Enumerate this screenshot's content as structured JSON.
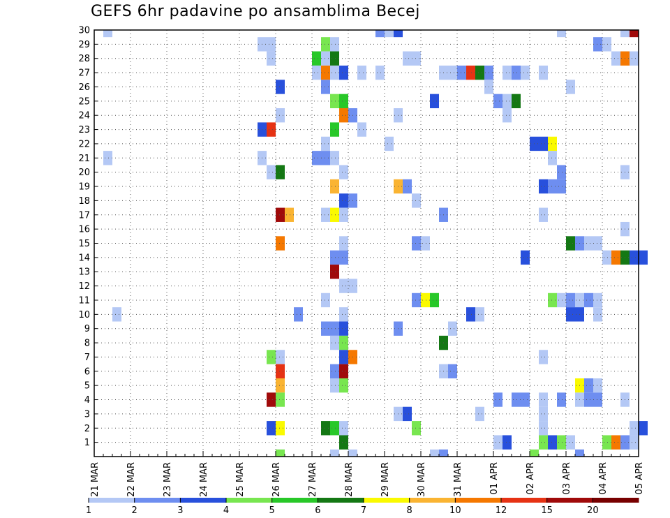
{
  "chart_data": {
    "type": "heatmap",
    "title": "GEFS 6hr padavine po ansamblima Becej",
    "xlabel": "",
    "ylabel": "",
    "x_ticks": [
      "21 MAR",
      "22 MAR",
      "23 MAR",
      "24 MAR",
      "25 MAR",
      "26 MAR",
      "27 MAR",
      "28 MAR",
      "29 MAR",
      "30 MAR",
      "31 MAR",
      "01 APR",
      "02 APR",
      "03 APR",
      "04 APR",
      "05 APR"
    ],
    "x_range": [
      "2024-03-21T00:00",
      "2024-04-05T00:00"
    ],
    "x_step_hours": 6,
    "y_ticks": [
      1,
      2,
      3,
      4,
      5,
      6,
      7,
      8,
      9,
      10,
      11,
      12,
      13,
      14,
      15,
      16,
      17,
      18,
      19,
      20,
      21,
      22,
      23,
      24,
      25,
      26,
      27,
      28,
      29,
      30
    ],
    "y_range": [
      0,
      30
    ],
    "grid": true,
    "levels": [
      1,
      2,
      3,
      4,
      5,
      6,
      7,
      8,
      10,
      12,
      15,
      20
    ],
    "colors": [
      "#b4c8f5",
      "#6e8ef0",
      "#2850dc",
      "#78e650",
      "#28c828",
      "#147814",
      "#fafa00",
      "#fab432",
      "#f57800",
      "#e63214",
      "#a00a0a",
      "#780000"
    ],
    "cells": [
      {
        "member": 30,
        "step": 1,
        "level": 1
      },
      {
        "member": 30,
        "step": 31,
        "level": 2
      },
      {
        "member": 30,
        "step": 32,
        "level": 1
      },
      {
        "member": 30,
        "step": 33,
        "level": 3
      },
      {
        "member": 30,
        "step": 51,
        "level": 1
      },
      {
        "member": 30,
        "step": 58,
        "level": 1
      },
      {
        "member": 30,
        "step": 59,
        "level": 11
      },
      {
        "member": 29,
        "step": 18,
        "level": 1
      },
      {
        "member": 29,
        "step": 19,
        "level": 1
      },
      {
        "member": 29,
        "step": 25,
        "level": 4
      },
      {
        "member": 29,
        "step": 26,
        "level": 1
      },
      {
        "member": 29,
        "step": 55,
        "level": 2
      },
      {
        "member": 29,
        "step": 56,
        "level": 1
      },
      {
        "member": 28,
        "step": 19,
        "level": 1
      },
      {
        "member": 28,
        "step": 24,
        "level": 5
      },
      {
        "member": 28,
        "step": 25,
        "level": 1
      },
      {
        "member": 28,
        "step": 26,
        "level": 6
      },
      {
        "member": 28,
        "step": 34,
        "level": 1
      },
      {
        "member": 28,
        "step": 35,
        "level": 1
      },
      {
        "member": 28,
        "step": 57,
        "level": 1
      },
      {
        "member": 28,
        "step": 58,
        "level": 9
      },
      {
        "member": 28,
        "step": 59,
        "level": 1
      },
      {
        "member": 27,
        "step": 24,
        "level": 1
      },
      {
        "member": 27,
        "step": 25,
        "level": 9
      },
      {
        "member": 27,
        "step": 26,
        "level": 1
      },
      {
        "member": 27,
        "step": 27,
        "level": 3
      },
      {
        "member": 27,
        "step": 29,
        "level": 1
      },
      {
        "member": 27,
        "step": 31,
        "level": 1
      },
      {
        "member": 27,
        "step": 38,
        "level": 1
      },
      {
        "member": 27,
        "step": 39,
        "level": 1
      },
      {
        "member": 27,
        "step": 40,
        "level": 2
      },
      {
        "member": 27,
        "step": 41,
        "level": 10
      },
      {
        "member": 27,
        "step": 42,
        "level": 6
      },
      {
        "member": 27,
        "step": 43,
        "level": 2
      },
      {
        "member": 27,
        "step": 45,
        "level": 1
      },
      {
        "member": 27,
        "step": 46,
        "level": 2
      },
      {
        "member": 27,
        "step": 47,
        "level": 1
      },
      {
        "member": 27,
        "step": 49,
        "level": 1
      },
      {
        "member": 26,
        "step": 20,
        "level": 3
      },
      {
        "member": 26,
        "step": 25,
        "level": 2
      },
      {
        "member": 26,
        "step": 43,
        "level": 1
      },
      {
        "member": 26,
        "step": 52,
        "level": 1
      },
      {
        "member": 25,
        "step": 26,
        "level": 4
      },
      {
        "member": 25,
        "step": 27,
        "level": 5
      },
      {
        "member": 25,
        "step": 37,
        "level": 3
      },
      {
        "member": 25,
        "step": 44,
        "level": 2
      },
      {
        "member": 25,
        "step": 45,
        "level": 1
      },
      {
        "member": 25,
        "step": 46,
        "level": 6
      },
      {
        "member": 24,
        "step": 20,
        "level": 1
      },
      {
        "member": 24,
        "step": 27,
        "level": 9
      },
      {
        "member": 24,
        "step": 28,
        "level": 2
      },
      {
        "member": 24,
        "step": 33,
        "level": 1
      },
      {
        "member": 24,
        "step": 45,
        "level": 1
      },
      {
        "member": 23,
        "step": 18,
        "level": 3
      },
      {
        "member": 23,
        "step": 19,
        "level": 10
      },
      {
        "member": 23,
        "step": 26,
        "level": 5
      },
      {
        "member": 23,
        "step": 29,
        "level": 1
      },
      {
        "member": 22,
        "step": 25,
        "level": 1
      },
      {
        "member": 22,
        "step": 32,
        "level": 1
      },
      {
        "member": 22,
        "step": 48,
        "level": 3
      },
      {
        "member": 22,
        "step": 49,
        "level": 3
      },
      {
        "member": 22,
        "step": 50,
        "level": 7
      },
      {
        "member": 21,
        "step": 1,
        "level": 1
      },
      {
        "member": 21,
        "step": 18,
        "level": 1
      },
      {
        "member": 21,
        "step": 24,
        "level": 2
      },
      {
        "member": 21,
        "step": 25,
        "level": 2
      },
      {
        "member": 21,
        "step": 26,
        "level": 1
      },
      {
        "member": 21,
        "step": 50,
        "level": 1
      },
      {
        "member": 20,
        "step": 19,
        "level": 1
      },
      {
        "member": 20,
        "step": 20,
        "level": 6
      },
      {
        "member": 20,
        "step": 27,
        "level": 1
      },
      {
        "member": 20,
        "step": 51,
        "level": 2
      },
      {
        "member": 20,
        "step": 58,
        "level": 1
      },
      {
        "member": 19,
        "step": 26,
        "level": 8
      },
      {
        "member": 19,
        "step": 33,
        "level": 8
      },
      {
        "member": 19,
        "step": 34,
        "level": 2
      },
      {
        "member": 19,
        "step": 49,
        "level": 3
      },
      {
        "member": 19,
        "step": 50,
        "level": 2
      },
      {
        "member": 19,
        "step": 51,
        "level": 2
      },
      {
        "member": 18,
        "step": 27,
        "level": 3
      },
      {
        "member": 18,
        "step": 28,
        "level": 2
      },
      {
        "member": 18,
        "step": 35,
        "level": 1
      },
      {
        "member": 17,
        "step": 20,
        "level": 11
      },
      {
        "member": 17,
        "step": 21,
        "level": 8
      },
      {
        "member": 17,
        "step": 25,
        "level": 1
      },
      {
        "member": 17,
        "step": 26,
        "level": 7
      },
      {
        "member": 17,
        "step": 27,
        "level": 1
      },
      {
        "member": 17,
        "step": 38,
        "level": 2
      },
      {
        "member": 17,
        "step": 49,
        "level": 1
      },
      {
        "member": 16,
        "step": 58,
        "level": 1
      },
      {
        "member": 15,
        "step": 20,
        "level": 9
      },
      {
        "member": 15,
        "step": 27,
        "level": 1
      },
      {
        "member": 15,
        "step": 35,
        "level": 2
      },
      {
        "member": 15,
        "step": 36,
        "level": 1
      },
      {
        "member": 15,
        "step": 52,
        "level": 6
      },
      {
        "member": 15,
        "step": 53,
        "level": 2
      },
      {
        "member": 15,
        "step": 54,
        "level": 1
      },
      {
        "member": 15,
        "step": 55,
        "level": 1
      },
      {
        "member": 14,
        "step": 26,
        "level": 2
      },
      {
        "member": 14,
        "step": 27,
        "level": 2
      },
      {
        "member": 14,
        "step": 47,
        "level": 3
      },
      {
        "member": 14,
        "step": 56,
        "level": 1
      },
      {
        "member": 14,
        "step": 57,
        "level": 9
      },
      {
        "member": 14,
        "step": 58,
        "level": 6
      },
      {
        "member": 14,
        "step": 59,
        "level": 3
      },
      {
        "member": 14,
        "step": 60,
        "level": 3
      },
      {
        "member": 13,
        "step": 26,
        "level": 11
      },
      {
        "member": 12,
        "step": 27,
        "level": 1
      },
      {
        "member": 12,
        "step": 28,
        "level": 1
      },
      {
        "member": 11,
        "step": 25,
        "level": 1
      },
      {
        "member": 11,
        "step": 35,
        "level": 2
      },
      {
        "member": 11,
        "step": 36,
        "level": 7
      },
      {
        "member": 11,
        "step": 37,
        "level": 5
      },
      {
        "member": 11,
        "step": 50,
        "level": 4
      },
      {
        "member": 11,
        "step": 51,
        "level": 1
      },
      {
        "member": 11,
        "step": 52,
        "level": 2
      },
      {
        "member": 11,
        "step": 53,
        "level": 1
      },
      {
        "member": 11,
        "step": 54,
        "level": 2
      },
      {
        "member": 11,
        "step": 55,
        "level": 1
      },
      {
        "member": 10,
        "step": 2,
        "level": 1
      },
      {
        "member": 10,
        "step": 22,
        "level": 2
      },
      {
        "member": 10,
        "step": 27,
        "level": 1
      },
      {
        "member": 10,
        "step": 41,
        "level": 3
      },
      {
        "member": 10,
        "step": 42,
        "level": 1
      },
      {
        "member": 10,
        "step": 52,
        "level": 3
      },
      {
        "member": 10,
        "step": 53,
        "level": 3
      },
      {
        "member": 10,
        "step": 55,
        "level": 1
      },
      {
        "member": 9,
        "step": 25,
        "level": 2
      },
      {
        "member": 9,
        "step": 26,
        "level": 2
      },
      {
        "member": 9,
        "step": 27,
        "level": 3
      },
      {
        "member": 9,
        "step": 33,
        "level": 2
      },
      {
        "member": 9,
        "step": 39,
        "level": 1
      },
      {
        "member": 8,
        "step": 26,
        "level": 1
      },
      {
        "member": 8,
        "step": 27,
        "level": 4
      },
      {
        "member": 8,
        "step": 38,
        "level": 6
      },
      {
        "member": 7,
        "step": 19,
        "level": 4
      },
      {
        "member": 7,
        "step": 20,
        "level": 1
      },
      {
        "member": 7,
        "step": 27,
        "level": 3
      },
      {
        "member": 7,
        "step": 28,
        "level": 9
      },
      {
        "member": 7,
        "step": 49,
        "level": 1
      },
      {
        "member": 6,
        "step": 20,
        "level": 10
      },
      {
        "member": 6,
        "step": 26,
        "level": 2
      },
      {
        "member": 6,
        "step": 27,
        "level": 11
      },
      {
        "member": 6,
        "step": 38,
        "level": 1
      },
      {
        "member": 6,
        "step": 39,
        "level": 2
      },
      {
        "member": 5,
        "step": 20,
        "level": 8
      },
      {
        "member": 5,
        "step": 26,
        "level": 1
      },
      {
        "member": 5,
        "step": 27,
        "level": 4
      },
      {
        "member": 5,
        "step": 53,
        "level": 7
      },
      {
        "member": 5,
        "step": 54,
        "level": 2
      },
      {
        "member": 5,
        "step": 55,
        "level": 1
      },
      {
        "member": 4,
        "step": 19,
        "level": 11
      },
      {
        "member": 4,
        "step": 20,
        "level": 4
      },
      {
        "member": 4,
        "step": 44,
        "level": 2
      },
      {
        "member": 4,
        "step": 46,
        "level": 2
      },
      {
        "member": 4,
        "step": 47,
        "level": 2
      },
      {
        "member": 4,
        "step": 49,
        "level": 1
      },
      {
        "member": 4,
        "step": 51,
        "level": 2
      },
      {
        "member": 4,
        "step": 53,
        "level": 1
      },
      {
        "member": 4,
        "step": 54,
        "level": 2
      },
      {
        "member": 4,
        "step": 55,
        "level": 2
      },
      {
        "member": 4,
        "step": 58,
        "level": 1
      },
      {
        "member": 3,
        "step": 33,
        "level": 1
      },
      {
        "member": 3,
        "step": 34,
        "level": 3
      },
      {
        "member": 3,
        "step": 42,
        "level": 1
      },
      {
        "member": 3,
        "step": 49,
        "level": 1
      },
      {
        "member": 2,
        "step": 19,
        "level": 3
      },
      {
        "member": 2,
        "step": 20,
        "level": 7
      },
      {
        "member": 2,
        "step": 25,
        "level": 6
      },
      {
        "member": 2,
        "step": 26,
        "level": 5
      },
      {
        "member": 2,
        "step": 27,
        "level": 1
      },
      {
        "member": 2,
        "step": 35,
        "level": 4
      },
      {
        "member": 2,
        "step": 49,
        "level": 1
      },
      {
        "member": 2,
        "step": 59,
        "level": 1
      },
      {
        "member": 2,
        "step": 60,
        "level": 3
      },
      {
        "member": 1,
        "step": 27,
        "level": 6
      },
      {
        "member": 1,
        "step": 44,
        "level": 1
      },
      {
        "member": 1,
        "step": 45,
        "level": 3
      },
      {
        "member": 1,
        "step": 49,
        "level": 4
      },
      {
        "member": 1,
        "step": 50,
        "level": 3
      },
      {
        "member": 1,
        "step": 51,
        "level": 4
      },
      {
        "member": 1,
        "step": 52,
        "level": 1
      },
      {
        "member": 1,
        "step": 56,
        "level": 4
      },
      {
        "member": 1,
        "step": 57,
        "level": 9
      },
      {
        "member": 1,
        "step": 58,
        "level": 2
      },
      {
        "member": 1,
        "step": 59,
        "level": 1
      },
      {
        "member": 0,
        "step": 20,
        "level": 4
      },
      {
        "member": 0,
        "step": 26,
        "level": 1
      },
      {
        "member": 0,
        "step": 28,
        "level": 1
      },
      {
        "member": 0,
        "step": 37,
        "level": 1
      },
      {
        "member": 0,
        "step": 38,
        "level": 2
      },
      {
        "member": 0,
        "step": 48,
        "level": 4
      },
      {
        "member": 0,
        "step": 53,
        "level": 2
      }
    ]
  }
}
